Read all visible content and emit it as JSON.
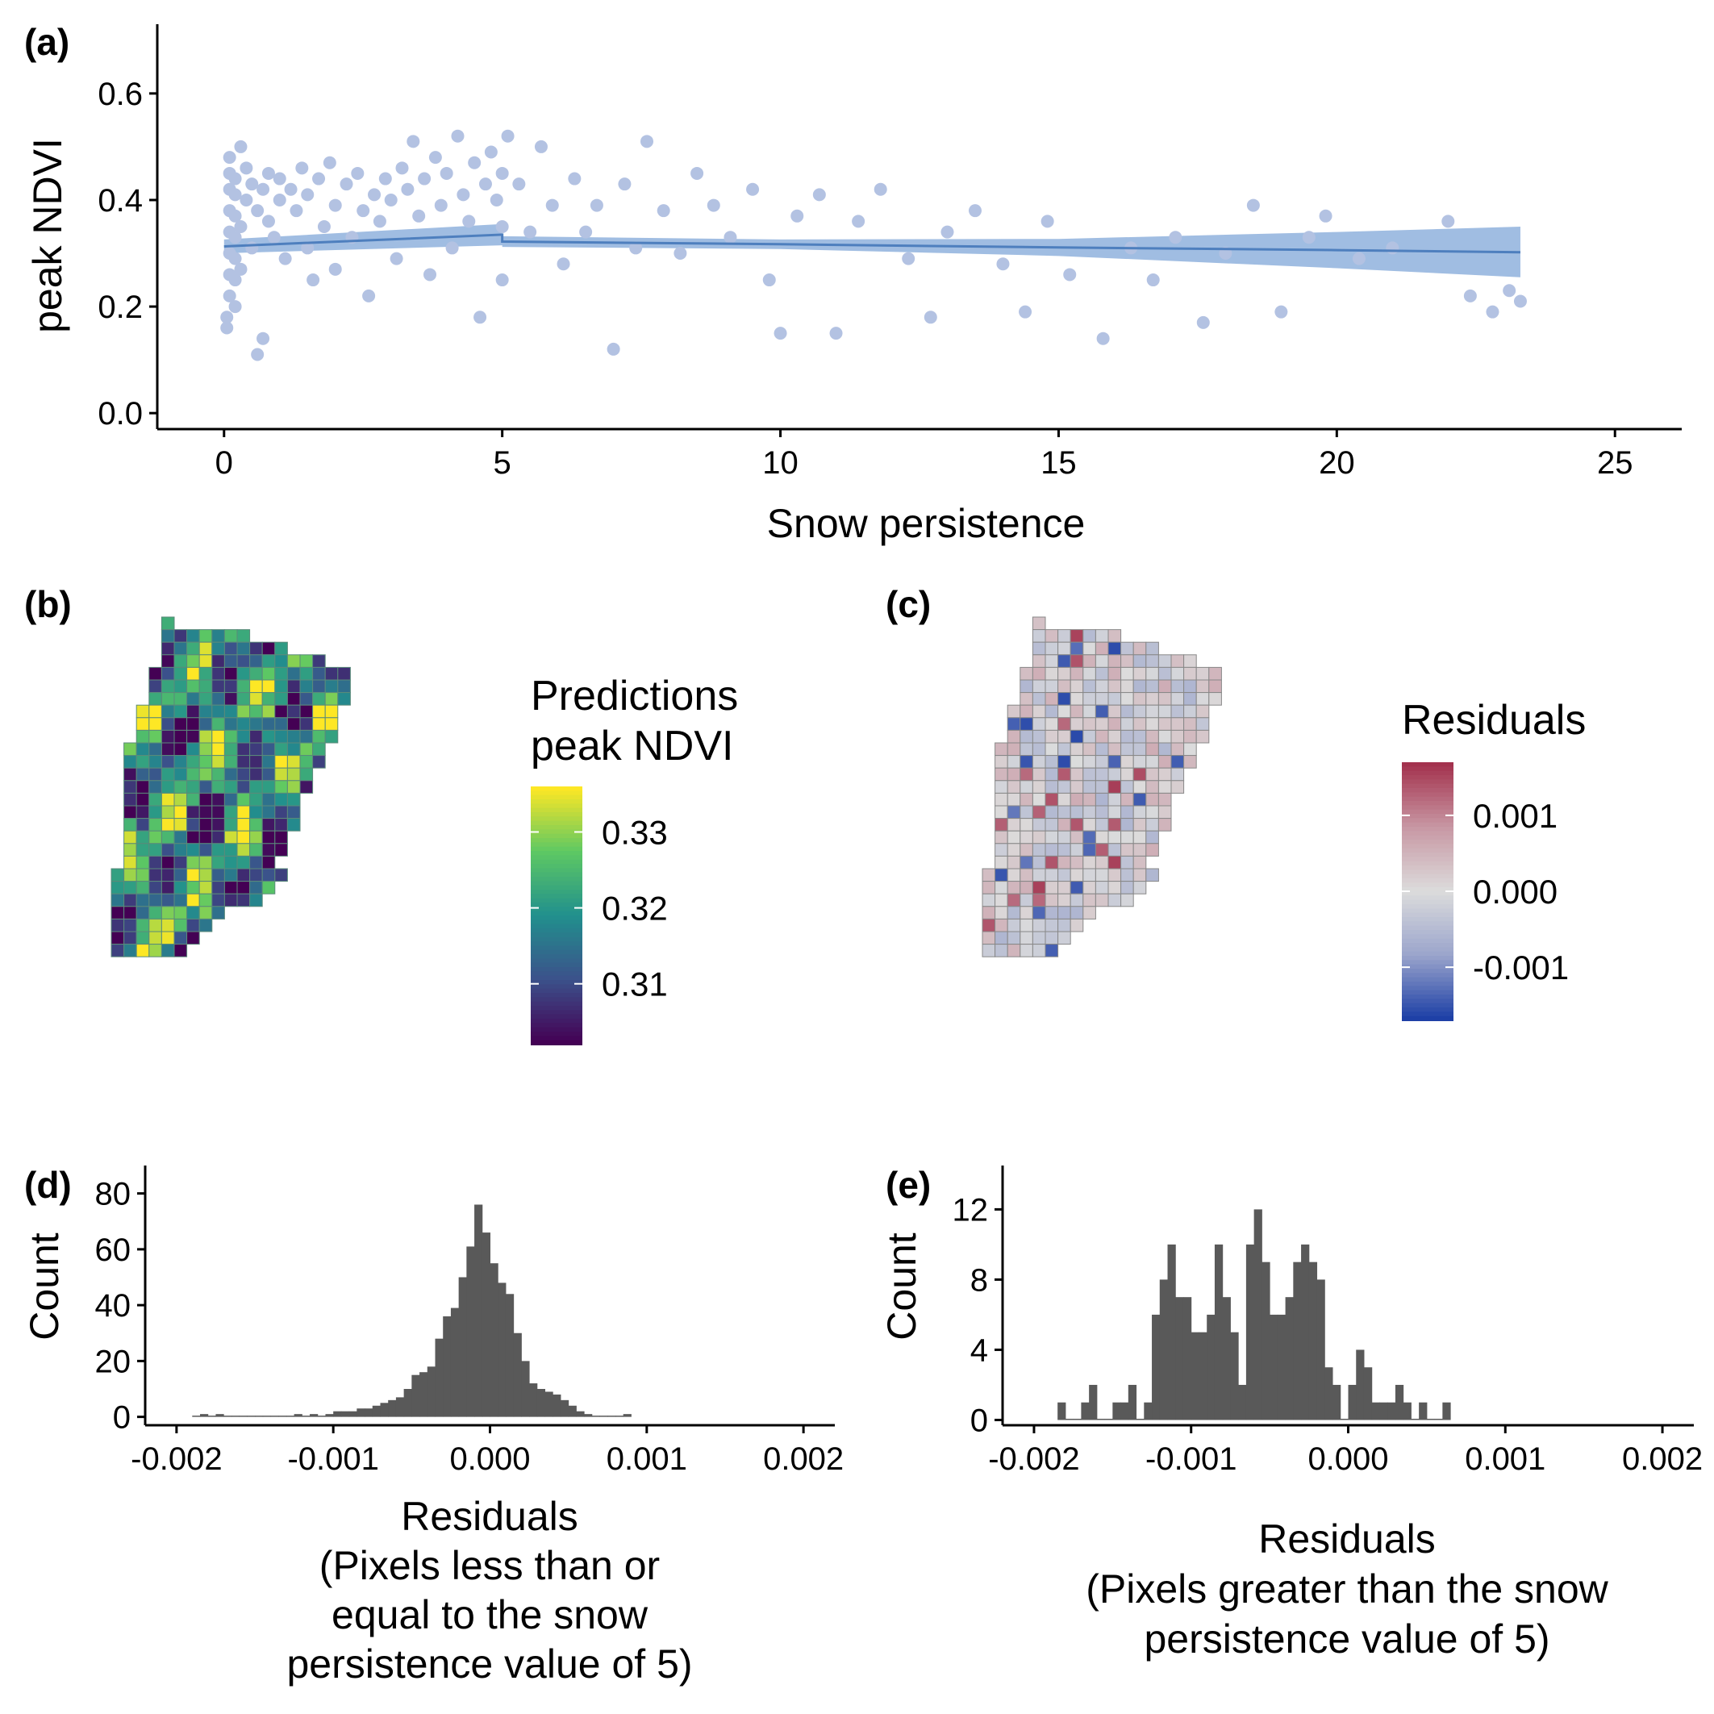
{
  "figure": {
    "panel_labels": [
      "(a)",
      "(b)",
      "(c)",
      "(d)",
      "(e)"
    ]
  },
  "chart_data": [
    {
      "id": "a",
      "type": "scatter",
      "xlabel": "Snow persistence",
      "ylabel": "peak NDVI",
      "xlim": [
        -1.2,
        26.2
      ],
      "ylim": [
        -0.03,
        0.73
      ],
      "xticks": [
        0,
        5,
        10,
        15,
        20,
        25
      ],
      "yticks": [
        0.0,
        0.2,
        0.4,
        0.6
      ],
      "ytick_labels": [
        "0.0",
        "0.2",
        "0.4",
        "0.6"
      ],
      "point_color": "#b3c2e2",
      "fit_color": "#4e7fbe",
      "band_color": "#8fb2dd",
      "points": [
        [
          0.05,
          0.16
        ],
        [
          0.05,
          0.18
        ],
        [
          0.1,
          0.22
        ],
        [
          0.1,
          0.26
        ],
        [
          0.1,
          0.3
        ],
        [
          0.1,
          0.34
        ],
        [
          0.1,
          0.38
        ],
        [
          0.1,
          0.42
        ],
        [
          0.1,
          0.45
        ],
        [
          0.1,
          0.48
        ],
        [
          0.2,
          0.2
        ],
        [
          0.2,
          0.25
        ],
        [
          0.2,
          0.29
        ],
        [
          0.2,
          0.33
        ],
        [
          0.2,
          0.37
        ],
        [
          0.2,
          0.41
        ],
        [
          0.2,
          0.44
        ],
        [
          0.3,
          0.5
        ],
        [
          0.3,
          0.27
        ],
        [
          0.3,
          0.35
        ],
        [
          0.4,
          0.4
        ],
        [
          0.4,
          0.46
        ],
        [
          0.5,
          0.31
        ],
        [
          0.5,
          0.43
        ],
        [
          0.6,
          0.11
        ],
        [
          0.6,
          0.38
        ],
        [
          0.7,
          0.42
        ],
        [
          0.7,
          0.14
        ],
        [
          0.8,
          0.36
        ],
        [
          0.8,
          0.45
        ],
        [
          0.9,
          0.33
        ],
        [
          1.0,
          0.4
        ],
        [
          1.0,
          0.44
        ],
        [
          1.1,
          0.29
        ],
        [
          1.2,
          0.42
        ],
        [
          1.3,
          0.38
        ],
        [
          1.4,
          0.46
        ],
        [
          1.5,
          0.31
        ],
        [
          1.5,
          0.41
        ],
        [
          1.6,
          0.25
        ],
        [
          1.7,
          0.44
        ],
        [
          1.8,
          0.35
        ],
        [
          1.9,
          0.47
        ],
        [
          2.0,
          0.39
        ],
        [
          2.0,
          0.27
        ],
        [
          2.2,
          0.43
        ],
        [
          2.3,
          0.33
        ],
        [
          2.4,
          0.45
        ],
        [
          2.5,
          0.38
        ],
        [
          2.6,
          0.22
        ],
        [
          2.7,
          0.41
        ],
        [
          2.8,
          0.36
        ],
        [
          2.9,
          0.44
        ],
        [
          3.0,
          0.4
        ],
        [
          3.1,
          0.29
        ],
        [
          3.2,
          0.46
        ],
        [
          3.3,
          0.42
        ],
        [
          3.4,
          0.51
        ],
        [
          3.5,
          0.37
        ],
        [
          3.6,
          0.44
        ],
        [
          3.7,
          0.26
        ],
        [
          3.8,
          0.48
        ],
        [
          3.9,
          0.39
        ],
        [
          4.0,
          0.45
        ],
        [
          4.1,
          0.31
        ],
        [
          4.2,
          0.52
        ],
        [
          4.3,
          0.41
        ],
        [
          4.4,
          0.36
        ],
        [
          4.5,
          0.47
        ],
        [
          4.6,
          0.18
        ],
        [
          4.7,
          0.43
        ],
        [
          4.8,
          0.49
        ],
        [
          4.9,
          0.4
        ],
        [
          5.0,
          0.45
        ],
        [
          5.0,
          0.35
        ],
        [
          5.0,
          0.25
        ],
        [
          5.1,
          0.52
        ],
        [
          5.3,
          0.43
        ],
        [
          5.5,
          0.34
        ],
        [
          5.7,
          0.5
        ],
        [
          5.9,
          0.39
        ],
        [
          6.1,
          0.28
        ],
        [
          6.3,
          0.44
        ],
        [
          6.5,
          0.34
        ],
        [
          6.7,
          0.39
        ],
        [
          7.0,
          0.12
        ],
        [
          7.2,
          0.43
        ],
        [
          7.4,
          0.31
        ],
        [
          7.6,
          0.51
        ],
        [
          7.9,
          0.38
        ],
        [
          8.2,
          0.3
        ],
        [
          8.5,
          0.45
        ],
        [
          8.8,
          0.39
        ],
        [
          9.1,
          0.33
        ],
        [
          9.5,
          0.42
        ],
        [
          9.8,
          0.25
        ],
        [
          10.0,
          0.15
        ],
        [
          10.3,
          0.37
        ],
        [
          10.7,
          0.41
        ],
        [
          11.0,
          0.15
        ],
        [
          11.4,
          0.36
        ],
        [
          11.8,
          0.42
        ],
        [
          12.3,
          0.29
        ],
        [
          12.7,
          0.18
        ],
        [
          13.0,
          0.34
        ],
        [
          13.5,
          0.38
        ],
        [
          14.0,
          0.28
        ],
        [
          14.4,
          0.19
        ],
        [
          14.8,
          0.36
        ],
        [
          15.2,
          0.26
        ],
        [
          15.8,
          0.14
        ],
        [
          16.3,
          0.31
        ],
        [
          16.7,
          0.25
        ],
        [
          17.1,
          0.33
        ],
        [
          17.6,
          0.17
        ],
        [
          18.0,
          0.3
        ],
        [
          18.5,
          0.39
        ],
        [
          19.0,
          0.19
        ],
        [
          19.5,
          0.33
        ],
        [
          19.8,
          0.37
        ],
        [
          20.4,
          0.29
        ],
        [
          21.0,
          0.31
        ],
        [
          22.0,
          0.36
        ],
        [
          22.4,
          0.22
        ],
        [
          22.8,
          0.19
        ],
        [
          23.1,
          0.23
        ],
        [
          23.3,
          0.21
        ]
      ],
      "fit": [
        [
          0,
          0.313
        ],
        [
          5,
          0.335
        ],
        [
          5,
          0.322
        ],
        [
          10,
          0.317
        ],
        [
          15,
          0.311
        ],
        [
          20,
          0.306
        ],
        [
          23.3,
          0.302
        ]
      ],
      "band_lower": [
        [
          0,
          0.3
        ],
        [
          5,
          0.315
        ],
        [
          5,
          0.312
        ],
        [
          10,
          0.308
        ],
        [
          15,
          0.295
        ],
        [
          20,
          0.272
        ],
        [
          23.3,
          0.255
        ]
      ],
      "band_upper": [
        [
          0,
          0.326
        ],
        [
          5,
          0.355
        ],
        [
          5,
          0.332
        ],
        [
          10,
          0.326
        ],
        [
          15,
          0.327
        ],
        [
          20,
          0.34
        ],
        [
          23.3,
          0.35
        ]
      ]
    },
    {
      "id": "b",
      "type": "heatmap",
      "legend_title": [
        "Predictions",
        "peak NDVI"
      ],
      "legend_ticks": [
        0.33,
        0.32,
        0.31
      ],
      "legend_tick_labels": [
        "0.33",
        "0.32",
        "0.31"
      ],
      "value_range": [
        0.302,
        0.336
      ],
      "colorscale": [
        "#440154",
        "#3b528b",
        "#21908d",
        "#5dc863",
        "#fde725"
      ]
    },
    {
      "id": "c",
      "type": "heatmap",
      "legend_title": [
        "Residuals"
      ],
      "legend_ticks": [
        0.001,
        0.0,
        -0.001
      ],
      "legend_tick_labels": [
        "0.001",
        "0.000",
        "-0.001"
      ],
      "value_range": [
        -0.0017,
        0.0017
      ],
      "colorscale": [
        "#1e40a6",
        "#9ba5cc",
        "#dcdcdc",
        "#c898a4",
        "#a3324e"
      ]
    },
    {
      "id": "d",
      "type": "bar",
      "xlabel_lines": [
        "Residuals",
        "(Pixels less than or",
        "equal to the snow",
        "persistence value of 5)"
      ],
      "ylabel": "Count",
      "xlim": [
        -0.0022,
        0.0022
      ],
      "ylim": [
        -3,
        90
      ],
      "xticks": [
        -0.002,
        -0.001,
        0.0,
        0.001,
        0.002
      ],
      "xtick_labels": [
        "-0.002",
        "-0.001",
        "0.000",
        "0.001",
        "0.002"
      ],
      "yticks": [
        0,
        20,
        40,
        60,
        80
      ],
      "bin_width": 5e-05,
      "bin_start": -0.0019,
      "values": [
        0,
        1,
        0,
        1,
        0,
        0,
        0,
        0,
        0,
        0,
        0,
        0,
        0,
        1,
        0,
        1,
        0,
        1,
        2,
        2,
        2,
        3,
        3,
        4,
        5,
        6,
        7,
        10,
        15,
        16,
        18,
        28,
        36,
        39,
        50,
        61,
        76,
        66,
        55,
        48,
        44,
        30,
        20,
        12,
        10,
        9,
        8,
        6,
        4,
        2,
        1,
        0,
        0,
        0,
        0,
        1
      ]
    },
    {
      "id": "e",
      "type": "bar",
      "xlabel_lines": [
        "Residuals",
        "(Pixels greater than the snow",
        "persistence value of 5)"
      ],
      "ylabel": "Count",
      "xlim": [
        -0.0022,
        0.0022
      ],
      "ylim": [
        -0.3,
        14.5
      ],
      "xticks": [
        -0.002,
        -0.001,
        0.0,
        0.001,
        0.002
      ],
      "xtick_labels": [
        "-0.002",
        "-0.001",
        "0.000",
        "0.001",
        "0.002"
      ],
      "yticks": [
        0,
        4,
        8,
        12
      ],
      "bin_width": 5e-05,
      "bin_start": -0.00185,
      "values": [
        1,
        0,
        0,
        1,
        2,
        0,
        0,
        1,
        1,
        2,
        0,
        1,
        6,
        8,
        10,
        7,
        7,
        5,
        5,
        6,
        10,
        7,
        5,
        2,
        10,
        12,
        9,
        6,
        6,
        7,
        9,
        10,
        9,
        8,
        3,
        2,
        0,
        2,
        4,
        3,
        1,
        1,
        1,
        2,
        1,
        0,
        1,
        0,
        0,
        1
      ]
    }
  ]
}
